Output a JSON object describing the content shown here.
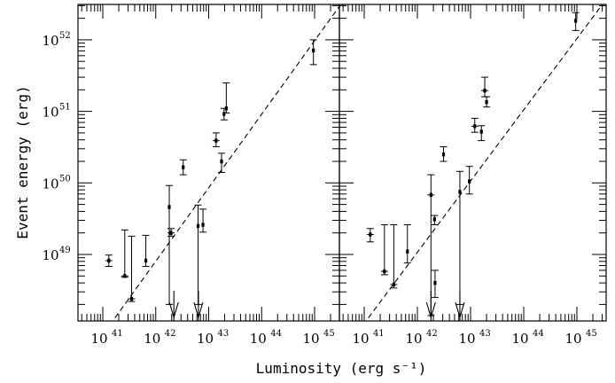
{
  "chart_data": [
    {
      "type": "scatter",
      "xscale": "log",
      "yscale": "log",
      "xlim": [
        1e+41,
        1e+45
      ],
      "ylim": [
        1.3e+48,
        3e+52
      ],
      "xlabel": "Luminosity (erg s⁻¹)",
      "ylabel": "Event energy (erg)",
      "xticklabels": [
        "10^41",
        "10^42",
        "10^43",
        "10^44",
        "10^45"
      ],
      "yticklabels": [
        "10^49",
        "10^50",
        "10^51",
        "10^52"
      ],
      "fit_line": [
        [
          1.7e+41,
          1.3e+48
        ],
        [
          3e+45,
          3e+52
        ]
      ],
      "points": [
        {
          "x": 1.3e+41,
          "y": 8.2e+48,
          "ylo": 6.8e+48,
          "yhi": 9.8e+48,
          "xerr": true
        },
        {
          "x": 2.6e+41,
          "y": 5e+48,
          "ylo": 4.8e+48,
          "yhi": 2.2e+49,
          "xerr": true
        },
        {
          "x": 3.5e+41,
          "y": 2.4e+48,
          "ylo": 2.2e+48,
          "yhi": 1.8e+49,
          "xerr": true
        },
        {
          "x": 6.5e+41,
          "y": 8.2e+48,
          "ylo": 6.8e+48,
          "yhi": 1.85e+49,
          "xerr": false
        },
        {
          "x": 1.8e+42,
          "y": 4.6e+49,
          "ylo": 2e+48,
          "yhi": 9.2e+49,
          "xerr": false
        },
        {
          "x": 1.95e+42,
          "y": 2e+49,
          "ylo": 1.8e+49,
          "yhi": 2.3e+49,
          "xerr": true
        },
        {
          "x": 3.3e+42,
          "y": 1.65e+50,
          "ylo": 1.3e+50,
          "yhi": 2.1e+50,
          "xerr": false
        },
        {
          "x": 6.3e+42,
          "y": 2.5e+49,
          "ylo": 2e+48,
          "yhi": 4.9e+49,
          "xerr": false
        },
        {
          "x": 7.8e+42,
          "y": 2.6e+49,
          "ylo": 2.05e+49,
          "yhi": 4.3e+49,
          "xerr": false
        },
        {
          "x": 1.38e+43,
          "y": 3.9e+50,
          "ylo": 3.2e+50,
          "yhi": 5e+50,
          "xerr": true
        },
        {
          "x": 1.75e+43,
          "y": 2e+50,
          "ylo": 1.4e+50,
          "yhi": 2.6e+50,
          "xerr": false
        },
        {
          "x": 1.95e+43,
          "y": 9.2e+50,
          "ylo": 7.6e+50,
          "yhi": 1.1e+51,
          "xerr": false
        },
        {
          "x": 2.15e+43,
          "y": 1.1e+51,
          "ylo": 9.5e+50,
          "yhi": 2.5e+51,
          "xerr": false
        },
        {
          "x": 9.5e+44,
          "y": 7.1e+51,
          "ylo": 4.5e+51,
          "yhi": 1e+52,
          "xerr": false
        }
      ],
      "upper_limits": [
        2.2e+42,
        6.4e+42
      ]
    },
    {
      "type": "scatter",
      "xscale": "log",
      "yscale": "log",
      "xlim": [
        1e+41,
        1e+45
      ],
      "ylim": [
        1.3e+48,
        3e+52
      ],
      "xlabel": "Luminosity (erg s⁻¹)",
      "ylabel": "Event energy (erg)",
      "xticklabels": [
        "10^41",
        "10^42",
        "10^43",
        "10^44",
        "10^45"
      ],
      "fit_line": [
        [
          1.2e+41,
          1.3e+48
        ],
        [
          2.9e+45,
          3e+52
        ]
      ],
      "points": [
        {
          "x": 1.3e+41,
          "y": 1.9e+49,
          "ylo": 1.5e+49,
          "yhi": 2.3e+49,
          "xerr": true
        },
        {
          "x": 2.4e+41,
          "y": 5.8e+48,
          "ylo": 5.2e+48,
          "yhi": 2.6e+49,
          "xerr": true
        },
        {
          "x": 3.6e+41,
          "y": 3.8e+48,
          "ylo": 3.4e+48,
          "yhi": 2.6e+49,
          "xerr": true
        },
        {
          "x": 6.5e+41,
          "y": 1.1e+49,
          "ylo": 7.6e+48,
          "yhi": 2.6e+49,
          "xerr": false
        },
        {
          "x": 1.8e+42,
          "y": 6.8e+49,
          "ylo": 1.4e+48,
          "yhi": 1.3e+50,
          "xerr": true
        },
        {
          "x": 2.1e+42,
          "y": 3.1e+49,
          "ylo": 2.6e+49,
          "yhi": 3.5e+49,
          "xerr": false
        },
        {
          "x": 2.15e+42,
          "y": 4e+48,
          "ylo": 2.5e+48,
          "yhi": 6e+48,
          "xerr": false
        },
        {
          "x": 3.1e+42,
          "y": 2.5e+50,
          "ylo": 2e+50,
          "yhi": 3.2e+50,
          "xerr": false
        },
        {
          "x": 6.3e+42,
          "y": 7.5e+49,
          "ylo": 2e+48,
          "yhi": 1.45e+50,
          "xerr": false
        },
        {
          "x": 9.5e+42,
          "y": 1.05e+50,
          "ylo": 7e+49,
          "yhi": 1.7e+50,
          "xerr": false
        },
        {
          "x": 1.2e+43,
          "y": 6.2e+50,
          "ylo": 5.1e+50,
          "yhi": 8e+50,
          "xerr": true
        },
        {
          "x": 1.6e+43,
          "y": 5.2e+50,
          "ylo": 3.9e+50,
          "yhi": 6.3e+50,
          "xerr": false
        },
        {
          "x": 1.85e+43,
          "y": 1.95e+51,
          "ylo": 1.6e+51,
          "yhi": 3e+51,
          "xerr": true
        },
        {
          "x": 2e+43,
          "y": 1.35e+51,
          "ylo": 1.15e+51,
          "yhi": 1.6e+51,
          "xerr": false
        },
        {
          "x": 9.5e+44,
          "y": 1.85e+52,
          "ylo": 1.35e+52,
          "yhi": 2.4e+52,
          "xerr": false
        }
      ],
      "upper_limits": [
        1.8e+42,
        6.3e+42
      ]
    }
  ]
}
